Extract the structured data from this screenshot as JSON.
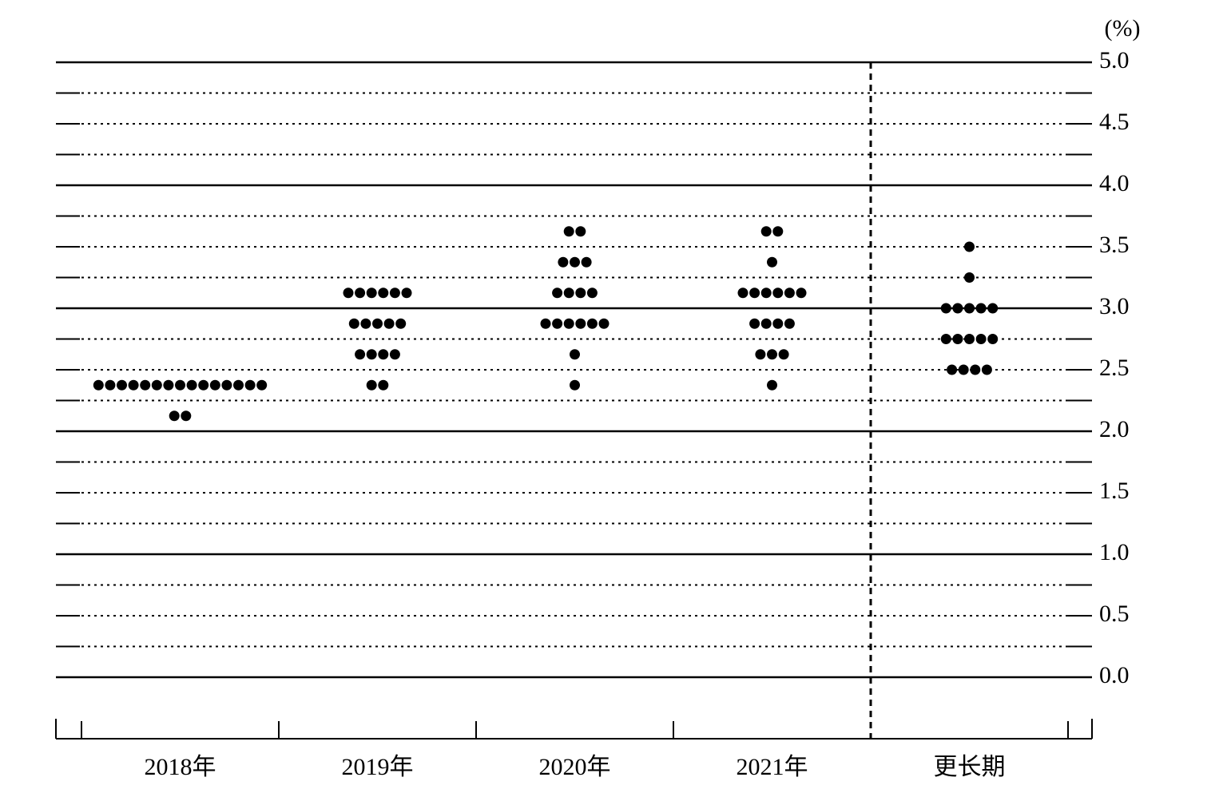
{
  "chart_data": {
    "type": "dot",
    "unit_label": "(%)",
    "categories": [
      "2018年",
      "2019年",
      "2020年",
      "2021年",
      "更长期"
    ],
    "values": [
      [
        2.375,
        2.375,
        2.375,
        2.375,
        2.375,
        2.375,
        2.375,
        2.375,
        2.375,
        2.375,
        2.375,
        2.375,
        2.375,
        2.375,
        2.375,
        2.125,
        2.125
      ],
      [
        3.125,
        3.125,
        3.125,
        3.125,
        3.125,
        3.125,
        2.875,
        2.875,
        2.875,
        2.875,
        2.875,
        2.625,
        2.625,
        2.625,
        2.625,
        2.375,
        2.375
      ],
      [
        3.625,
        3.625,
        3.375,
        3.375,
        3.375,
        3.125,
        3.125,
        3.125,
        3.125,
        2.875,
        2.875,
        2.875,
        2.875,
        2.875,
        2.875,
        2.625,
        2.375
      ],
      [
        3.625,
        3.625,
        3.375,
        3.125,
        3.125,
        3.125,
        3.125,
        3.125,
        3.125,
        2.875,
        2.875,
        2.875,
        2.875,
        2.625,
        2.625,
        2.625,
        2.375
      ],
      [
        3.5,
        3.25,
        3.0,
        3.0,
        3.0,
        3.0,
        3.0,
        2.75,
        2.75,
        2.75,
        2.75,
        2.75,
        2.5,
        2.5,
        2.5,
        2.5
      ]
    ],
    "color": "#000000",
    "ylim": [
      0,
      5
    ],
    "yticks": [
      {
        "value": 0,
        "label": "0.0"
      },
      {
        "value": 0.5,
        "label": "0.5"
      },
      {
        "value": 1,
        "label": "1.0"
      },
      {
        "value": 1.5,
        "label": "1.5"
      },
      {
        "value": 2,
        "label": "2.0"
      },
      {
        "value": 2.5,
        "label": "2.5"
      },
      {
        "value": 3,
        "label": "3.0"
      },
      {
        "value": 3.5,
        "label": "3.5"
      },
      {
        "value": 4,
        "label": "4.0"
      },
      {
        "value": 4.5,
        "label": "4.5"
      },
      {
        "value": 5,
        "label": "5.0"
      }
    ],
    "minor_yticks": [
      0.25,
      0.75,
      1.25,
      1.75,
      2.25,
      2.75,
      3.25,
      3.75,
      4.25,
      4.75
    ],
    "grid": true
  }
}
